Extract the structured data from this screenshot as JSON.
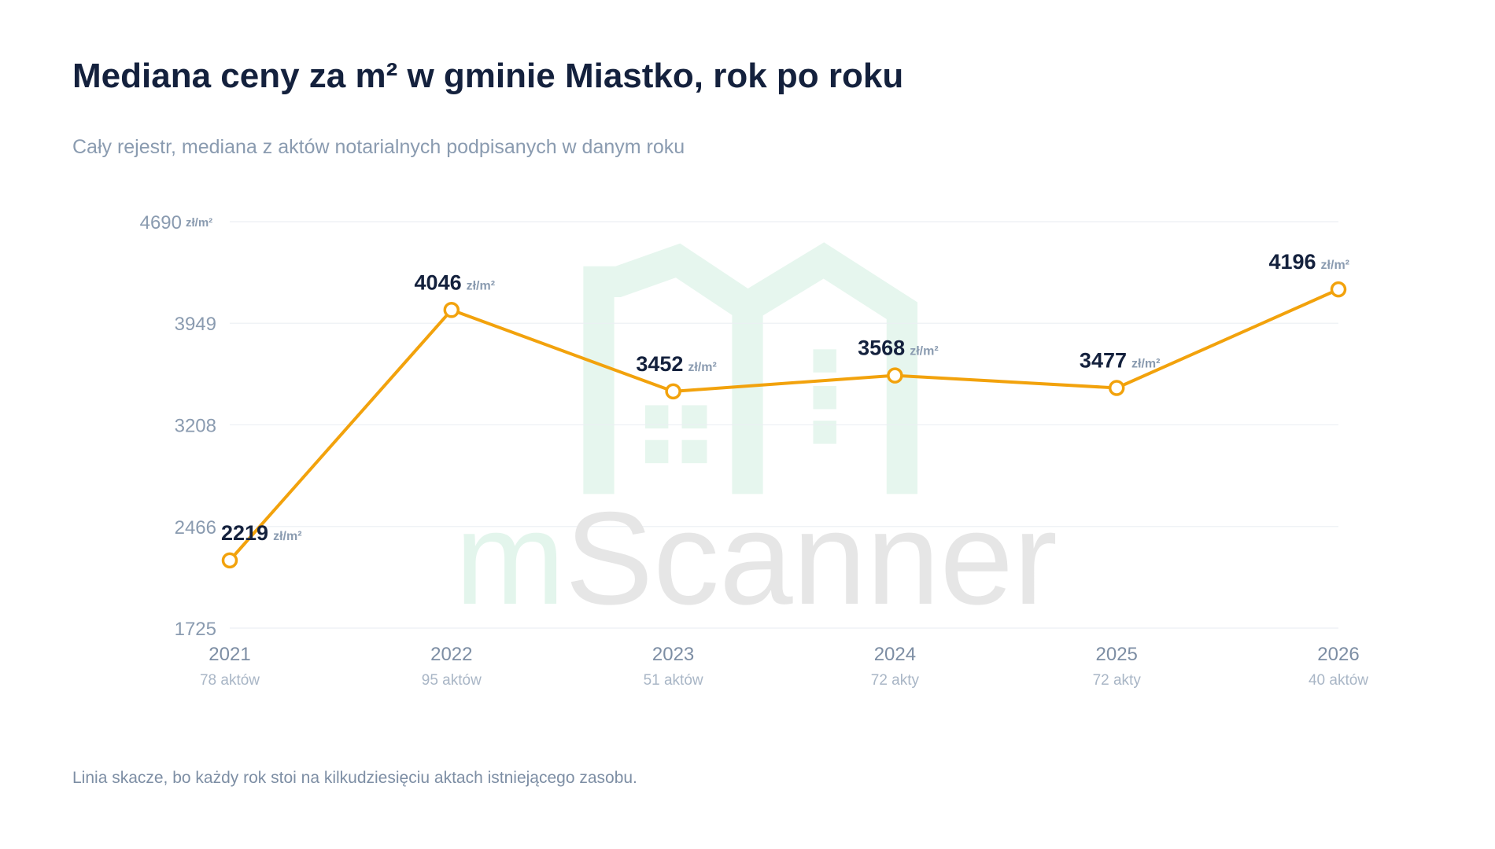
{
  "chart_data": {
    "type": "line",
    "title": "Mediana ceny za m² w gminie Miastko, rok po roku",
    "subtitle": "Cały rejestr, mediana z aktów notarialnych podpisanych w danym roku",
    "unit": "zł/m²",
    "watermark": "mScanner",
    "categories": [
      "2021",
      "2022",
      "2023",
      "2024",
      "2025",
      "2026"
    ],
    "counts": [
      "78 aktów",
      "95 aktów",
      "51 aktów",
      "72 akty",
      "72 akty",
      "40 aktów"
    ],
    "series": [
      {
        "name": "Mediana ceny za m²",
        "color": "#f2a20c",
        "values": [
          2219,
          4046,
          3452,
          3568,
          3477,
          4196
        ]
      }
    ],
    "ylim": [
      1725,
      4690
    ],
    "yticks": [
      1725,
      2466,
      3208,
      3949,
      4690
    ],
    "grid": true,
    "footnote": "Linia skacze, bo każdy rok stoi na kilkudziesięciu aktach istniejącego zasobu."
  }
}
